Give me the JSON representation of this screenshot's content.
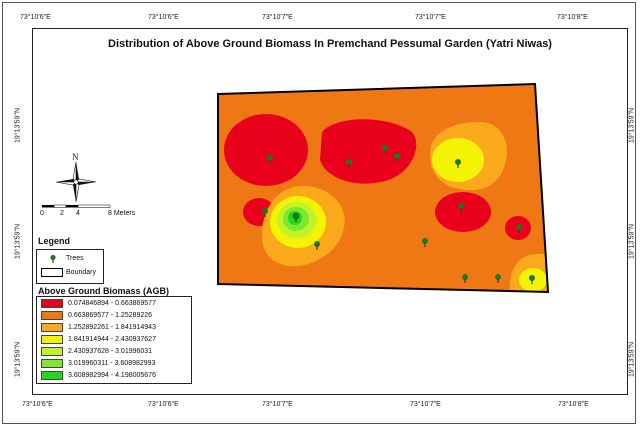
{
  "map": {
    "title": "Distribution of Above Ground Biomass In Premchand Pessumal Garden (Yatri Niwas)",
    "top_ticks": [
      "73°10'6\"E",
      "73°10'6\"E",
      "73°10'7\"E",
      "73°10'7\"E",
      "73°10'8\"E"
    ],
    "bottom_ticks": [
      "73°10'6\"E",
      "73°10'6\"E",
      "73°10'7\"E",
      "73°10'7\"E",
      "73°10'8\"E"
    ],
    "left_ticks": [
      "19°13'59\"N",
      "19°13'59\"N",
      "19°13'59\"N"
    ],
    "right_ticks": [
      "19°13'59\"N",
      "19°13'59\"N",
      "19°13'59\"N"
    ],
    "north_label": "N",
    "scale": {
      "labels": [
        "0",
        "2",
        "4",
        "8 Meters"
      ]
    },
    "colors": {
      "background": "#ffffff",
      "boundary": "#000000",
      "tree": "#1a7a1a"
    }
  },
  "legend": {
    "title": "Legend",
    "trees_label": "Trees",
    "boundary_label": "Boundary",
    "agb_title": "Above Ground Biomass (AGB)",
    "classes": [
      {
        "range": "0.074846894 - 0.663869577",
        "color": "#e8001c"
      },
      {
        "range": "0.663869577 - 1.25289226",
        "color": "#f07814"
      },
      {
        "range": "1.252892261 - 1.841914943",
        "color": "#f9a91a"
      },
      {
        "range": "1.841914944 - 2.430937627",
        "color": "#f4f205"
      },
      {
        "range": "2.430937628 - 3.01996031",
        "color": "#c3f22a"
      },
      {
        "range": "3.019960311 - 3.608982993",
        "color": "#7de82f"
      },
      {
        "range": "3.608982994 - 4.198005676",
        "color": "#22d81c"
      }
    ]
  }
}
